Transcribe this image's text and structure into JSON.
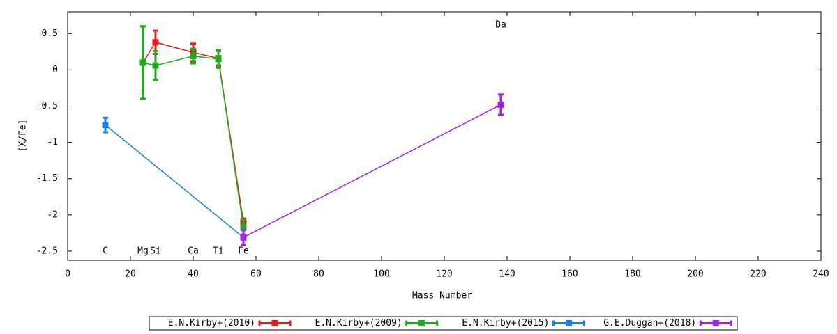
{
  "chart_data": {
    "type": "errorline",
    "x_label": "Mass Number",
    "y_label": "[X/Fe]",
    "xlim": [
      0,
      240
    ],
    "ylim": [
      -2.625,
      0.8
    ],
    "xticks": [
      0,
      20,
      40,
      60,
      80,
      100,
      120,
      140,
      160,
      180,
      200,
      220,
      240
    ],
    "yticks": [
      0.5,
      0,
      -0.5,
      -1,
      -1.5,
      -2,
      -2.5
    ],
    "grid": false,
    "legend": "bottom",
    "series": [
      {
        "name": "E.N.Kirby+(2010)",
        "color": "#e41a1c",
        "x": [
          24,
          28,
          40,
          48,
          56
        ],
        "values": [
          0.1,
          0.38,
          0.24,
          0.16,
          -2.1
        ],
        "errors": [
          0.5,
          0.16,
          0.12,
          0.1,
          0.05
        ]
      },
      {
        "name": "E.N.Kirby+(2009)",
        "color": "#1aaf1a",
        "x": [
          24,
          28,
          40,
          48,
          56
        ],
        "values": [
          0.1,
          0.06,
          0.19,
          0.15,
          -2.17
        ],
        "errors": [
          0.5,
          0.2,
          0.1,
          0.12,
          0.1
        ]
      },
      {
        "name": "E.N.Kirby+(2015)",
        "color": "#1a7fe6",
        "x": [
          12,
          56
        ],
        "values": [
          -0.76,
          -2.31
        ],
        "errors": [
          0.1,
          0.1
        ]
      },
      {
        "name": "G.E.Duggan+(2018)",
        "color": "#a61ff0",
        "x": [
          56,
          138
        ],
        "values": [
          -2.31,
          -0.48
        ],
        "errors": [
          0.1,
          0.14
        ]
      }
    ],
    "annotations": [
      {
        "text": "C",
        "x": 12,
        "y": -2.5
      },
      {
        "text": "Mg",
        "x": 24,
        "y": -2.5
      },
      {
        "text": "Si",
        "x": 28,
        "y": -2.5
      },
      {
        "text": "Ca",
        "x": 40,
        "y": -2.5
      },
      {
        "text": "Ti",
        "x": 48,
        "y": -2.5
      },
      {
        "text": "Fe",
        "x": 56,
        "y": -2.5
      },
      {
        "text": "Ba",
        "x": 138,
        "y": 0.62
      }
    ]
  }
}
